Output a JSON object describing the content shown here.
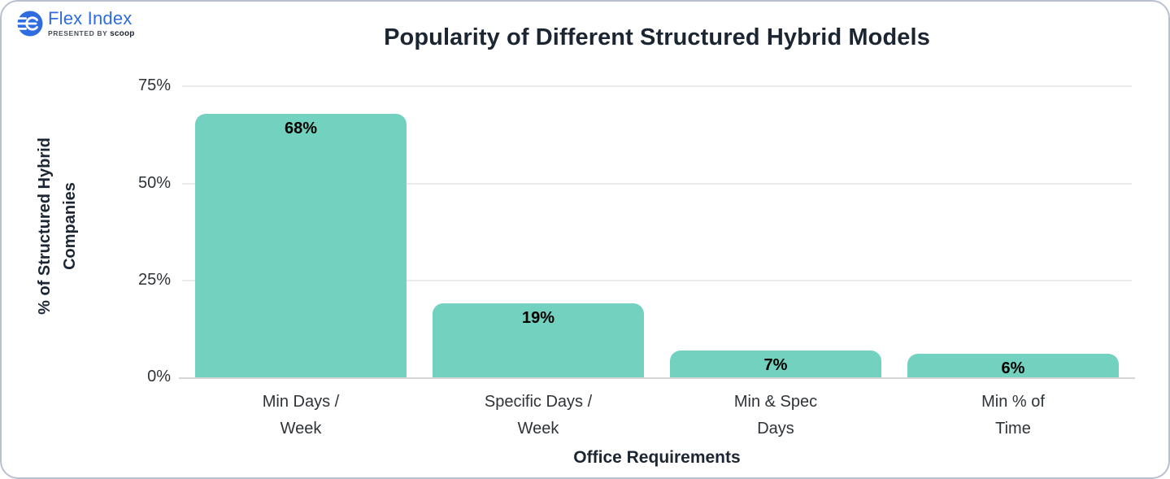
{
  "logo": {
    "brand": "Flex Index",
    "presented_by_prefix": "PRESENTED BY",
    "presented_by_brand": "scoop",
    "brand_color": "#2e6ce0"
  },
  "chart_data": {
    "type": "bar",
    "title": "Popularity of Different Structured Hybrid Models",
    "xlabel": "Office Requirements",
    "ylabel": "% of Structured Hybrid\nCompanies",
    "categories": [
      "Min Days /\nWeek",
      "Specific Days /\nWeek",
      "Min & Spec\nDays",
      "Min % of\nTime"
    ],
    "values": [
      68,
      19,
      7,
      6
    ],
    "value_labels": [
      "68%",
      "19%",
      "7%",
      "6%"
    ],
    "yticks": [
      0,
      25,
      50,
      75
    ],
    "ytick_labels": [
      "0%",
      "25%",
      "50%",
      "75%"
    ],
    "ylim": [
      0,
      78
    ],
    "grid": true,
    "legend": "none",
    "bar_color": "#73d2bf",
    "value_label_color": "#000000",
    "gridline_color": "#ebebeb",
    "axis_line_color": "#d6d6d6"
  }
}
